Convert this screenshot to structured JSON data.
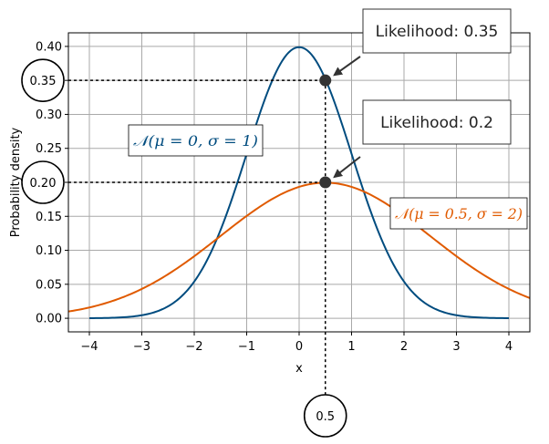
{
  "chart_data": {
    "type": "line",
    "xlabel": "x",
    "ylabel": "Probability density",
    "xlim": [
      -4.4,
      4.4
    ],
    "ylim": [
      -0.02,
      0.42
    ],
    "grid": true,
    "xticks": [
      {
        "value": -4,
        "label": "−4"
      },
      {
        "value": -3,
        "label": "−3"
      },
      {
        "value": -2,
        "label": "−2"
      },
      {
        "value": -1,
        "label": "−1"
      },
      {
        "value": 0,
        "label": "0"
      },
      {
        "value": 1,
        "label": "1"
      },
      {
        "value": 2,
        "label": "2"
      },
      {
        "value": 3,
        "label": "3"
      },
      {
        "value": 4,
        "label": "4"
      }
    ],
    "yticks": [
      {
        "value": 0.0,
        "label": "0.00"
      },
      {
        "value": 0.05,
        "label": "0.05"
      },
      {
        "value": 0.1,
        "label": "0.10"
      },
      {
        "value": 0.15,
        "label": "0.15"
      },
      {
        "value": 0.2,
        "label": "0.20"
      },
      {
        "value": 0.25,
        "label": "0.25"
      },
      {
        "value": 0.3,
        "label": "0.30"
      },
      {
        "value": 0.35,
        "label": "0.35"
      },
      {
        "value": 0.4,
        "label": "0.40"
      }
    ],
    "series": [
      {
        "label": "𝒩(μ = 0, σ = 1)",
        "mu": 0,
        "sigma": 1,
        "x_range": [
          -4,
          4
        ],
        "color": "#004c7f"
      },
      {
        "label": "𝒩(μ = 0.5, σ = 2)",
        "mu": 0.5,
        "sigma": 2,
        "x_range": [
          -4.4,
          4.4
        ],
        "color": "#e05a00"
      }
    ],
    "highlight_points": [
      {
        "x": 0.5,
        "y": 0.35,
        "callout": "Likelihood: 0.35"
      },
      {
        "x": 0.5,
        "y": 0.2,
        "callout": "Likelihood: 0.2"
      }
    ],
    "circled_values": [
      {
        "axis": "y",
        "value": 0.35,
        "label": "0.35"
      },
      {
        "axis": "y",
        "value": 0.2,
        "label": "0.20"
      },
      {
        "axis": "x",
        "value": 0.5,
        "label": "0.5"
      }
    ]
  }
}
